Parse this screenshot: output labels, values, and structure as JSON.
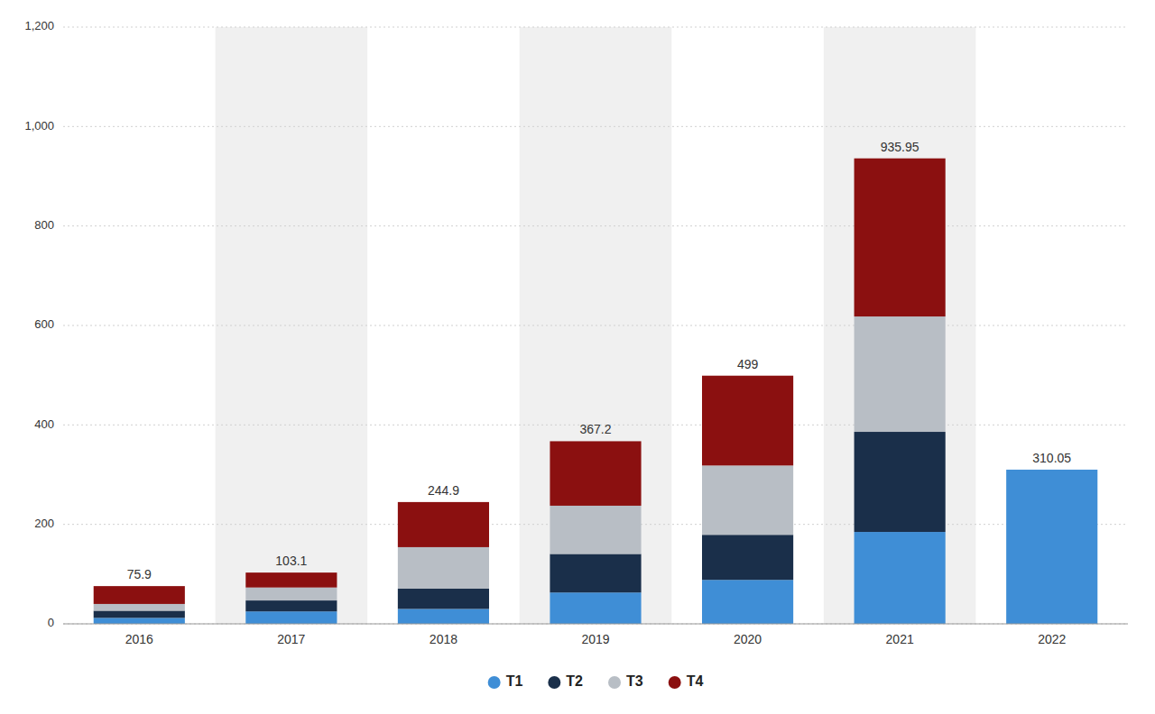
{
  "chart_data": {
    "type": "bar",
    "stacked": true,
    "categories": [
      "2016",
      "2017",
      "2018",
      "2019",
      "2020",
      "2021",
      "2022"
    ],
    "series": [
      {
        "name": "T1",
        "color": "#3f8ed6",
        "values": [
          12.0,
          25.0,
          30.0,
          63.0,
          88.4,
          184.8,
          310.05
        ]
      },
      {
        "name": "T2",
        "color": "#1a2f4a",
        "values": [
          14.4,
          22.0,
          40.7,
          77.55,
          90.65,
          201.25,
          0
        ]
      },
      {
        "name": "T3",
        "color": "#b8bec5",
        "values": [
          13.6,
          26.1,
          83.5,
          97.0,
          139.3,
          232.0,
          0
        ]
      },
      {
        "name": "T4",
        "color": "#8b1010",
        "values": [
          35.9,
          30.0,
          90.7,
          129.65,
          180.65,
          317.9,
          0
        ]
      }
    ],
    "totals": [
      75.9,
      103.1,
      244.9,
      367.2,
      499,
      935.95,
      310.05
    ],
    "ylim": [
      0,
      1200
    ],
    "yticks": [
      0,
      200,
      400,
      600,
      800,
      {
        "value": 1000,
        "label": "1,000"
      },
      {
        "value": 1200,
        "label": "1,200"
      }
    ],
    "grid": true,
    "legend": "bottom"
  }
}
